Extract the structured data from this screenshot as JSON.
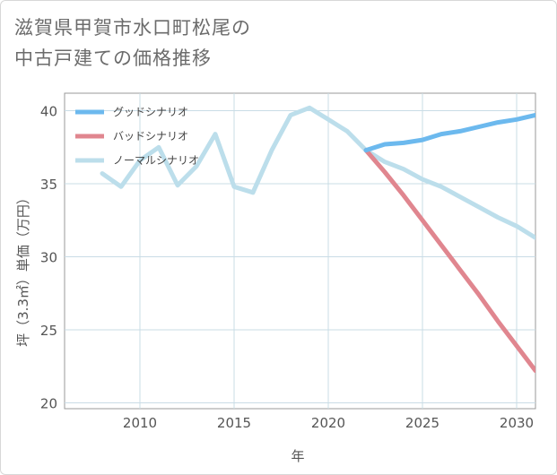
{
  "title_lines": [
    "滋賀県甲賀市水口町松尾の",
    "中古戸建ての価格推移"
  ],
  "chart_data": {
    "type": "line",
    "xlabel": "年",
    "ylabel": "坪（3.3㎡）単価（万円）",
    "xlim": [
      2006,
      2031
    ],
    "ylim": [
      19.6,
      41.2
    ],
    "xticks": [
      2010,
      2015,
      2020,
      2025,
      2030
    ],
    "yticks": [
      20,
      25,
      30,
      35,
      40
    ],
    "grid": true,
    "legend_position": "top-left",
    "series": [
      {
        "name": "グッドシナリオ",
        "color": "#6cb9ee",
        "x": [
          2022,
          2023,
          2024,
          2025,
          2026,
          2027,
          2028,
          2029,
          2030,
          2031
        ],
        "values": [
          37.3,
          37.7,
          37.8,
          38.0,
          38.4,
          38.6,
          38.9,
          39.2,
          39.4,
          39.7
        ]
      },
      {
        "name": "バッドシナリオ",
        "color": "#e0868f",
        "x": [
          2022,
          2023,
          2024,
          2025,
          2026,
          2027,
          2028,
          2029,
          2030,
          2031
        ],
        "values": [
          37.3,
          35.8,
          34.2,
          32.5,
          30.8,
          29.1,
          27.4,
          25.6,
          23.9,
          22.2
        ]
      },
      {
        "name": "ノーマルシナリオ",
        "color": "#bcdeeb",
        "x": [
          2008,
          2009,
          2010,
          2011,
          2012,
          2013,
          2014,
          2015,
          2016,
          2017,
          2018,
          2019,
          2020,
          2021,
          2022,
          2023,
          2024,
          2025,
          2026,
          2027,
          2028,
          2029,
          2030,
          2031
        ],
        "values": [
          35.7,
          34.8,
          36.6,
          37.5,
          34.9,
          36.2,
          38.4,
          34.8,
          34.4,
          37.3,
          39.7,
          40.2,
          39.4,
          38.6,
          37.3,
          36.5,
          36.0,
          35.3,
          34.8,
          34.1,
          33.4,
          32.7,
          32.1,
          31.3
        ]
      }
    ]
  }
}
